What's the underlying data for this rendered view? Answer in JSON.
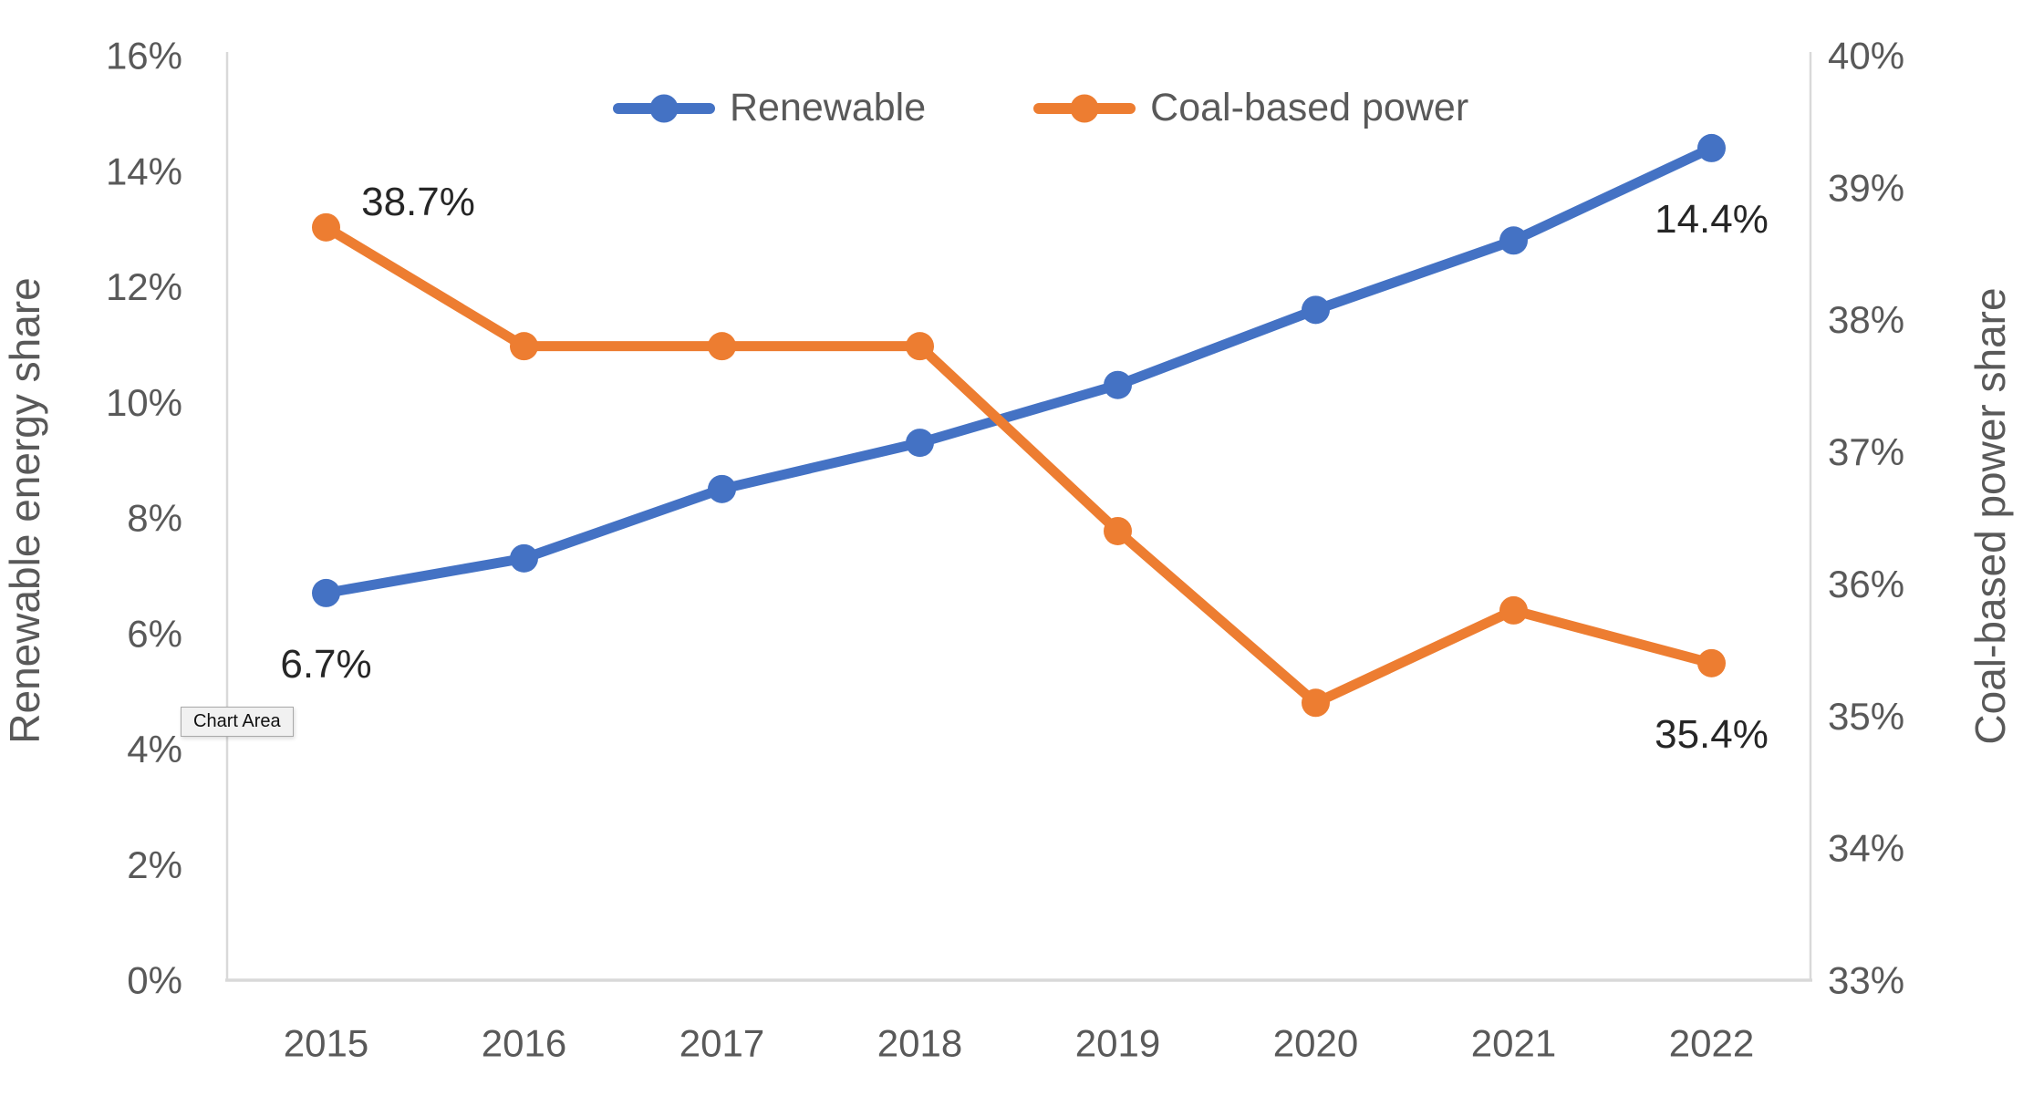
{
  "tooltip": {
    "text": "Chart Area"
  },
  "chart_data": {
    "type": "line",
    "categories": [
      "2015",
      "2016",
      "2017",
      "2018",
      "2019",
      "2020",
      "2021",
      "2022"
    ],
    "series": [
      {
        "name": "Renewable",
        "axis": "left",
        "color": "#4472C4",
        "values": [
          6.7,
          7.3,
          8.5,
          9.3,
          10.3,
          11.6,
          12.8,
          14.4
        ]
      },
      {
        "name": "Coal-based power",
        "axis": "right",
        "color": "#ED7D31",
        "values": [
          38.7,
          37.8,
          37.8,
          37.8,
          36.4,
          35.1,
          35.8,
          35.4
        ]
      }
    ],
    "left_axis": {
      "title": "Renewable energy share",
      "min": 0,
      "max": 16,
      "step": 2,
      "tick_labels": [
        "0%",
        "2%",
        "4%",
        "6%",
        "8%",
        "10%",
        "12%",
        "14%",
        "16%"
      ]
    },
    "right_axis": {
      "title": "Coal-based power share",
      "min": 33,
      "max": 40,
      "step": 1,
      "tick_labels": [
        "33%",
        "34%",
        "35%",
        "36%",
        "37%",
        "38%",
        "39%",
        "40%"
      ]
    },
    "point_labels": [
      {
        "series": "Coal-based power",
        "index": 0,
        "text": "38.7%",
        "placement": "above-right"
      },
      {
        "series": "Renewable",
        "index": 0,
        "text": "6.7%",
        "placement": "below"
      },
      {
        "series": "Renewable",
        "index": 7,
        "text": "14.4%",
        "placement": "below"
      },
      {
        "series": "Coal-based power",
        "index": 7,
        "text": "35.4%",
        "placement": "below"
      }
    ],
    "legend_position": "top",
    "grid": false,
    "colors": {
      "tick_text": "#595959",
      "data_label_text": "#262626",
      "axis_line": "#D9D9D9"
    }
  }
}
